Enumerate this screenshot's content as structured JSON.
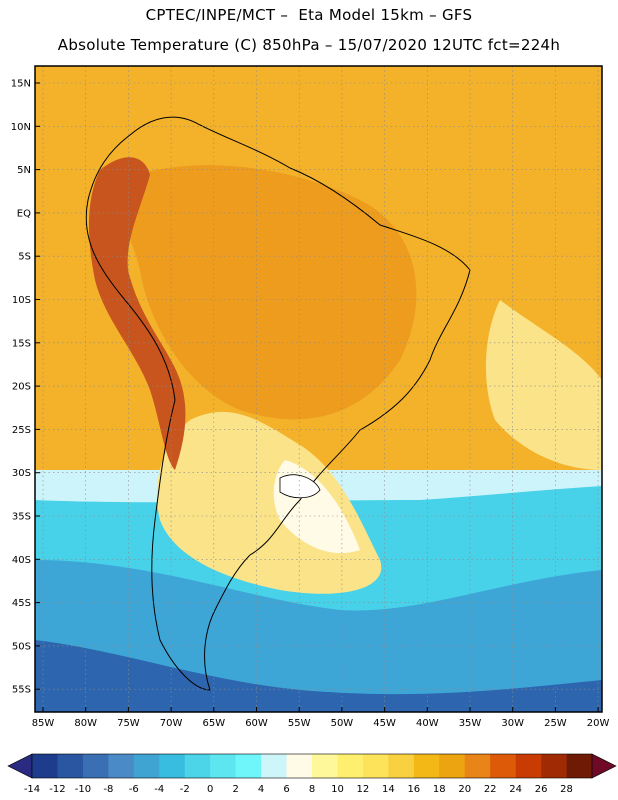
{
  "title_line1": "CPTEC/INPE/MCT –  Eta Model 15km – GFS",
  "title_line2": "Absolute Temperature (C) 850hPa – 15/07/2020 12UTC fct=224h",
  "lat_labels": [
    "15N",
    "10N",
    "5N",
    "EQ",
    "5S",
    "10S",
    "15S",
    "20S",
    "25S",
    "30S",
    "35S",
    "40S",
    "45S",
    "50S",
    "55S"
  ],
  "lon_labels": [
    "85W",
    "80W",
    "75W",
    "70W",
    "65W",
    "60W",
    "55W",
    "50W",
    "45W",
    "40W",
    "35W",
    "30W",
    "25W",
    "20W"
  ],
  "colorbar": {
    "ticks": [
      "-14",
      "-12",
      "-10",
      "-8",
      "-6",
      "-4",
      "-2",
      "0",
      "2",
      "4",
      "6",
      "8",
      "10",
      "12",
      "14",
      "16",
      "18",
      "20",
      "22",
      "24",
      "26",
      "28"
    ],
    "colors": [
      "#1e3c8c",
      "#2a55a0",
      "#3a6fb4",
      "#4a8ac6",
      "#3fa4d2",
      "#38bce0",
      "#4cd4e8",
      "#5ee6f0",
      "#6ff6fa",
      "#cdf6fa",
      "#fffbe6",
      "#fff89a",
      "#fef06e",
      "#fce35a",
      "#f8d040",
      "#f4b816",
      "#eca410",
      "#e88418",
      "#dc5a08",
      "#c83c04",
      "#a02a04",
      "#6e1a04"
    ],
    "under_color": "#2a2a80",
    "over_color": "#6e0a28"
  },
  "field_colors": {
    "north": "#f3b22a",
    "andes": "#c8541e",
    "warm": "#ee9c1e",
    "mild": "#fbe38a",
    "cool": "#cdf4fa",
    "cold": "#48d2ea",
    "colder": "#3ea6d6",
    "coldest": "#2d66ae"
  }
}
